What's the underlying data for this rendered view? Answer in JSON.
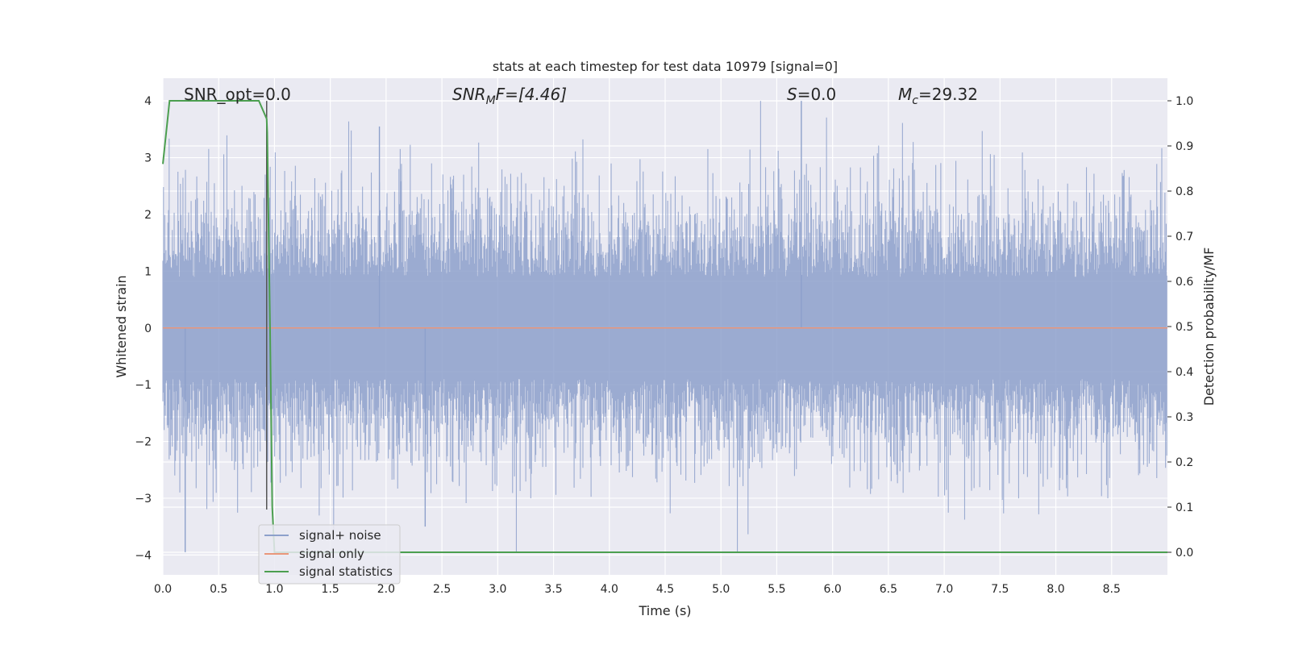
{
  "chart_data": {
    "type": "line",
    "title": "stats at each timestep for test data 10979 [signal=0]",
    "xlabel": "Time (s)",
    "ylabel": "Whitened strain",
    "ylabel_right": "Detection probability/MF",
    "xlim": [
      0.0,
      9.0
    ],
    "ylim": [
      -4.35,
      4.4
    ],
    "ylim_right": [
      -0.05,
      1.05
    ],
    "xticks": [
      "0.0",
      "0.5",
      "1.0",
      "1.5",
      "2.0",
      "2.5",
      "3.0",
      "3.5",
      "4.0",
      "4.5",
      "5.0",
      "5.5",
      "6.0",
      "6.5",
      "7.0",
      "7.5",
      "8.0",
      "8.5"
    ],
    "yticks": [
      "4",
      "3",
      "2",
      "1",
      "0",
      "−1",
      "−2",
      "−3",
      "−4"
    ],
    "yticks_right": [
      "1.0",
      "0.9",
      "0.8",
      "0.7",
      "0.6",
      "0.5",
      "0.4",
      "0.3",
      "0.2",
      "0.1",
      "0.0"
    ],
    "grid": true,
    "legend_position": "lower-left",
    "annotations": {
      "snr_opt": "SNR_opt=0.0",
      "snr_mf_base": "SNR",
      "snr_mf_sub": "M",
      "snr_mf_rest": "F=[4.46]",
      "s_base": "S",
      "s_rest": "=0.0",
      "mc_base": "M",
      "mc_sub": "c",
      "mc_rest": "=29.32"
    },
    "vertical_marker_x": 0.93,
    "series": [
      {
        "name": "signal+ noise",
        "color": "#8da0cb",
        "note_values": "dense noise, approx. range -3.9 to 4.0, typical |x| < 2.5",
        "axis": "left"
      },
      {
        "name": "signal only",
        "color": "#e9967a",
        "values_const": 0.0,
        "axis": "left"
      },
      {
        "name": "signal statistics",
        "color": "#4c9f50",
        "axis": "right",
        "x": [
          0.0,
          0.06,
          0.1,
          0.3,
          0.5,
          0.7,
          0.86,
          0.93,
          0.935,
          0.96,
          0.98,
          1.0,
          1.1,
          2.0,
          4.0,
          6.0,
          8.0,
          9.0
        ],
        "values": [
          0.86,
          1.0,
          1.0,
          1.0,
          1.0,
          1.0,
          1.0,
          0.96,
          0.93,
          0.5,
          0.1,
          0.0,
          0.0,
          0.0,
          0.0,
          0.0,
          0.0,
          0.0
        ]
      }
    ]
  }
}
